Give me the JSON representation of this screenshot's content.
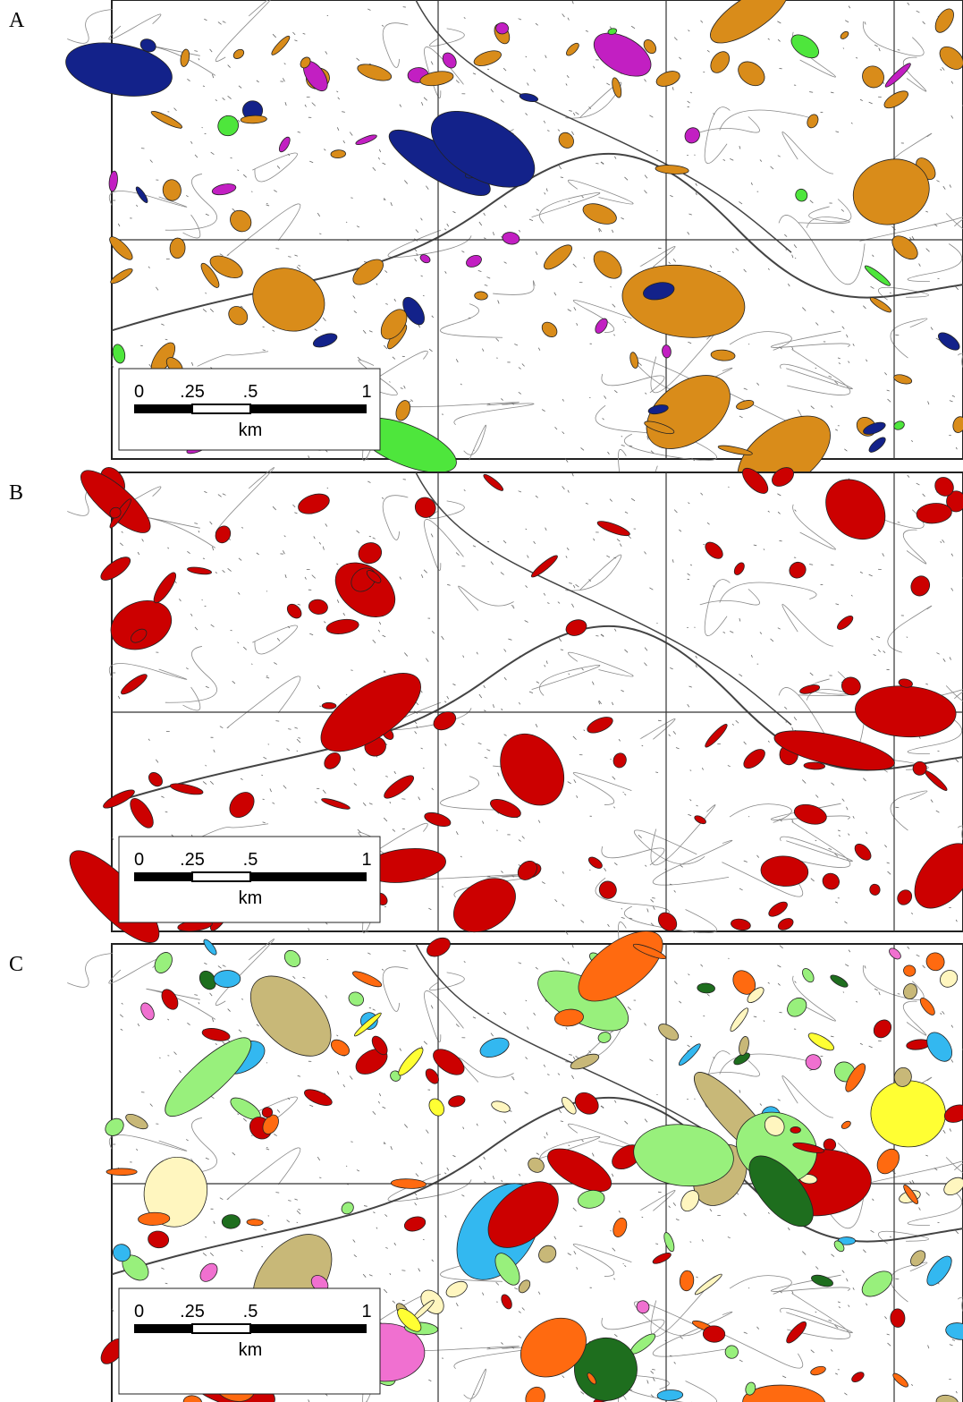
{
  "panels": [
    {
      "label": "A",
      "scale_bar": {
        "ticks": [
          "0",
          ".25",
          ".5",
          "1"
        ],
        "unit": "km"
      }
    },
    {
      "label": "B",
      "scale_bar": {
        "ticks": [
          "0",
          ".25",
          ".5",
          "1"
        ],
        "unit": "km"
      }
    },
    {
      "label": "C",
      "scale_bar": {
        "ticks": [
          "0",
          ".25",
          ".5",
          "1"
        ],
        "unit": "km"
      }
    }
  ]
}
